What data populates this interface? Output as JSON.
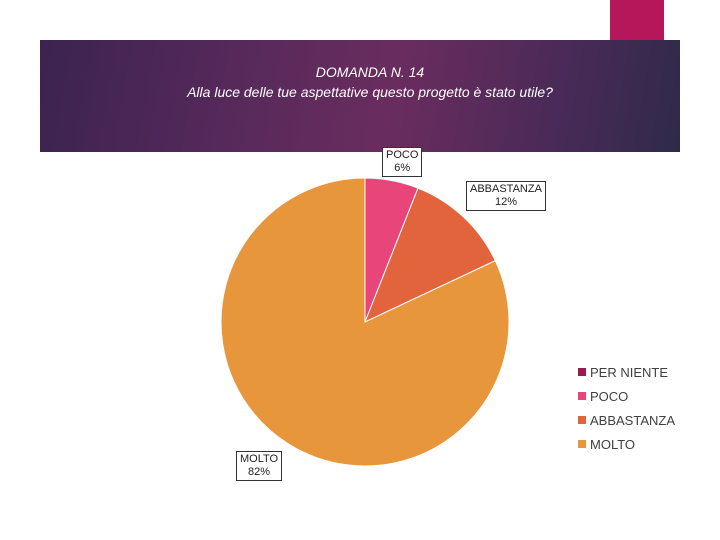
{
  "chart_data": {
    "type": "pie",
    "title_line1": "DOMANDA N. 14",
    "title_line2": "Alla luce delle tue aspettative questo progetto è stato utile?",
    "categories": [
      "PER NIENTE",
      "POCO",
      "ABBASTANZA",
      "MOLTO"
    ],
    "values": [
      0,
      6,
      12,
      82
    ],
    "colors": [
      "#9c1a4f",
      "#e8457a",
      "#e2643c",
      "#e8963c"
    ],
    "data_labels": [
      {
        "name": "POCO",
        "value": "6%"
      },
      {
        "name": "ABBASTANZA",
        "value": "12%"
      },
      {
        "name": "MOLTO",
        "value": "82%"
      }
    ],
    "legend_position": "right"
  },
  "theme": {
    "header_accent": "#b5175a"
  }
}
